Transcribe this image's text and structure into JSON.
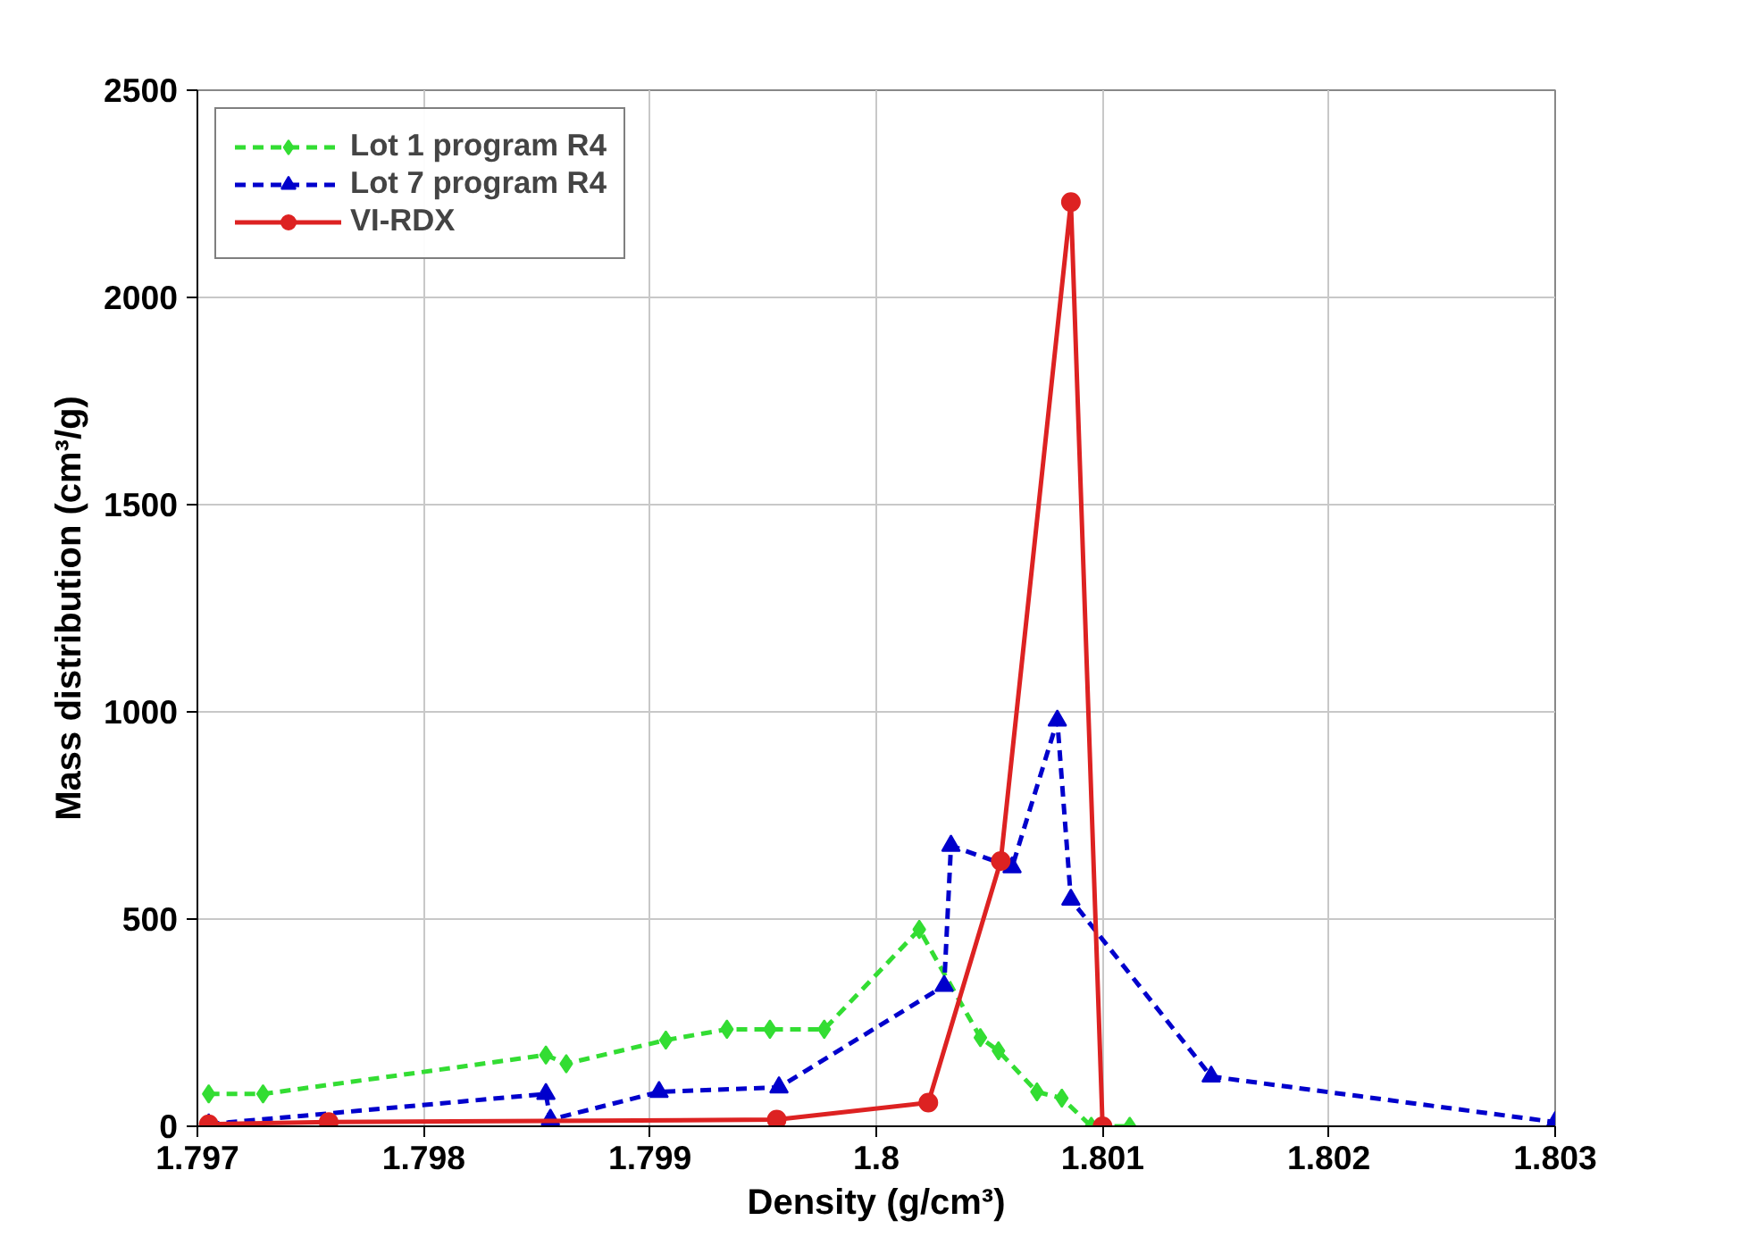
{
  "chart_data": {
    "type": "line",
    "xlabel": "Density (g/cm³)",
    "ylabel": "Mass distribution (cm³/g)",
    "xlim": [
      1.797,
      1.803
    ],
    "xticks": [
      1.797,
      1.798,
      1.799,
      1.8,
      1.801,
      1.802,
      1.803
    ],
    "ylim": [
      0,
      2500
    ],
    "yticks": [
      0,
      500,
      1000,
      1500,
      2000,
      2500
    ],
    "grid": true,
    "legend": "top left",
    "series": [
      {
        "name": "Lot 1 program R4",
        "color": "#33dd33",
        "marker": "diamond",
        "line_style": "dashed",
        "x": [
          1.79705,
          1.79729,
          1.79854,
          1.79863,
          1.79907,
          1.79934,
          1.79953,
          1.79977,
          1.80019,
          1.80046,
          1.80054,
          1.80071,
          1.80082,
          1.80095,
          1.80112
        ],
        "values": [
          78,
          78,
          172,
          151,
          208,
          234,
          234,
          234,
          475,
          214,
          182,
          83,
          68,
          0,
          0
        ]
      },
      {
        "name": "Lot 7 program R4",
        "color": "#0000cc",
        "marker": "triangle",
        "line_style": "dashed",
        "x": [
          1.79705,
          1.79854,
          1.79856,
          1.79904,
          1.79957,
          1.8003,
          1.80033,
          1.8006,
          1.8008,
          1.80086,
          1.80148,
          1.803
        ],
        "values": [
          5,
          78,
          16,
          83,
          94,
          339,
          677,
          625,
          979,
          547,
          120,
          10
        ]
      },
      {
        "name": "VI-RDX",
        "color": "#dd2222",
        "marker": "circle",
        "line_style": "solid",
        "x": [
          1.79705,
          1.79758,
          1.79956,
          1.80023,
          1.80055,
          1.80086,
          1.801
        ],
        "values": [
          5,
          10,
          16,
          57,
          640,
          2230,
          0
        ]
      }
    ]
  }
}
